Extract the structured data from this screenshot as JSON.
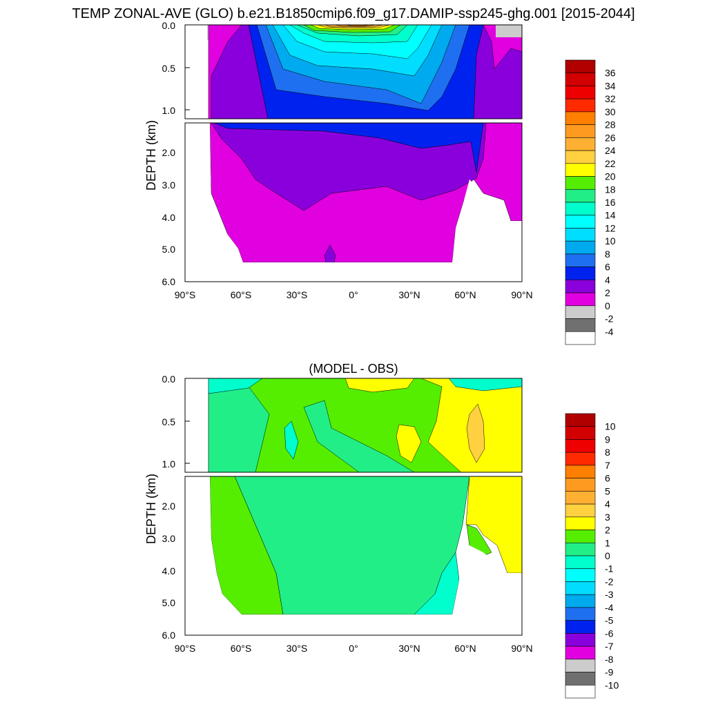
{
  "figure": {
    "title": "TEMP ZONAL-AVE (GLO) b.e21.B1850cmip6.f09_g17.DAMIP-ssp245-ghg.001 [2015-2044]"
  },
  "chart_data": [
    {
      "type": "heatmap",
      "title": "",
      "xlabel": "",
      "ylabel": "DEPTH (km)",
      "x_ticks": [
        "90°S",
        "60°S",
        "30°S",
        "0°",
        "30°N",
        "60°N",
        "90°N"
      ],
      "upper_y_ticks": [
        "0.0",
        "0.5",
        "1.0"
      ],
      "lower_y_ticks": [
        "2.0",
        "3.0",
        "4.0",
        "5.0",
        "6.0"
      ],
      "x_range": [
        -90,
        90
      ],
      "depth_upper_range_km": [
        0,
        1.1
      ],
      "depth_lower_range_km": [
        1.1,
        6.0
      ],
      "colorbar_labels": [
        "36",
        "34",
        "32",
        "30",
        "28",
        "26",
        "24",
        "22",
        "20",
        "18",
        "16",
        "14",
        "12",
        "10",
        "8",
        "6",
        "4",
        "2",
        "0",
        "-2",
        "-4"
      ],
      "colorbar_colors": [
        "#b00000",
        "#d20000",
        "#ee0000",
        "#ff2a00",
        "#ff7f00",
        "#ff9a20",
        "#ffb032",
        "#ffd040",
        "#ffff00",
        "#55ee00",
        "#22ee88",
        "#00ffcc",
        "#00ffff",
        "#00ddff",
        "#00aaee",
        "#1e70f0",
        "#0022ee",
        "#8a00dd",
        "#e000e0",
        "#cccccc",
        "#707070",
        "#ffffff"
      ],
      "contour_field": "temperature",
      "description_values": {
        "surface_max_equator": 28,
        "deep_ocean": 1
      }
    },
    {
      "type": "heatmap",
      "title": "(MODEL - OBS)",
      "xlabel": "",
      "ylabel": "DEPTH (km)",
      "x_ticks": [
        "90°S",
        "60°S",
        "30°S",
        "0°",
        "30°N",
        "60°N",
        "90°N"
      ],
      "upper_y_ticks": [
        "0.0",
        "0.5",
        "1.0"
      ],
      "lower_y_ticks": [
        "2.0",
        "3.0",
        "4.0",
        "5.0",
        "6.0"
      ],
      "x_range": [
        -90,
        90
      ],
      "depth_upper_range_km": [
        0,
        1.1
      ],
      "depth_lower_range_km": [
        1.1,
        6.0
      ],
      "colorbar_labels": [
        "10",
        "9",
        "8",
        "7",
        "6",
        "5",
        "4",
        "3",
        "2",
        "1",
        "0",
        "-1",
        "-2",
        "-3",
        "-4",
        "-5",
        "-6",
        "-7",
        "-8",
        "-9",
        "-10"
      ],
      "colorbar_colors": [
        "#b00000",
        "#d20000",
        "#ee0000",
        "#ff2a00",
        "#ff7f00",
        "#ff9a20",
        "#ffb032",
        "#ffd040",
        "#ffff00",
        "#55ee00",
        "#22ee88",
        "#00ffcc",
        "#00ffff",
        "#00ddff",
        "#00aaee",
        "#1e70f0",
        "#0022ee",
        "#8a00dd",
        "#e000e0",
        "#cccccc",
        "#707070",
        "#ffffff"
      ],
      "contour_field": "temperature difference",
      "description_values": {
        "dominant_deep_value": 1,
        "arctic_surface_anomaly": 3
      }
    }
  ]
}
